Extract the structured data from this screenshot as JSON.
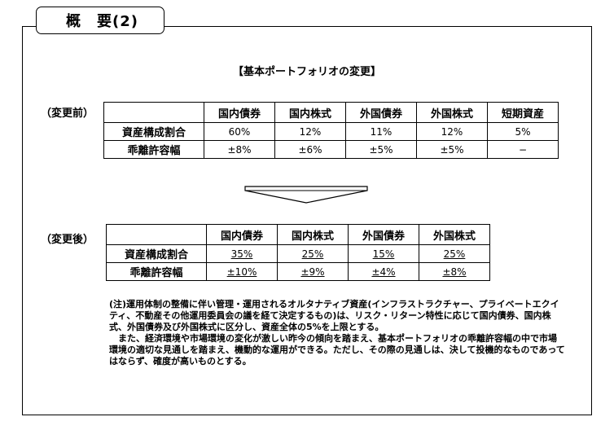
{
  "header": {
    "title": "概　要(2)"
  },
  "section_title": "【基本ポートフォリオの変更】",
  "before": {
    "label": "（変更前）",
    "columns": [
      "国内債券",
      "国内株式",
      "外国債券",
      "外国株式",
      "短期資産"
    ],
    "rows": [
      {
        "label": "資産構成割合",
        "values": [
          "60%",
          "12%",
          "11%",
          "12%",
          "5%"
        ]
      },
      {
        "label": "乖離許容幅",
        "values": [
          "±8%",
          "±6%",
          "±5%",
          "±5%",
          "−"
        ]
      }
    ]
  },
  "after": {
    "label": "（変更後）",
    "columns": [
      "国内債券",
      "国内株式",
      "外国債券",
      "外国株式"
    ],
    "rows": [
      {
        "label": "資産構成割合",
        "values": [
          "35%",
          "25%",
          "15%",
          "25%"
        ]
      },
      {
        "label": "乖離許容幅",
        "values": [
          "±10%",
          "±9%",
          "±4%",
          "±8%"
        ]
      }
    ]
  },
  "note": {
    "paragraph1": "(注)運用体制の整備に伴い管理・運用されるオルタナティブ資産(インフラストラクチャー、プライベートエクイティ、不動産その他運用委員会の議を経て決定するもの)は、リスク・リターン特性に応じて国内債券、国内株式、外国債券及び外国株式に区分し、資産全体の5%を上限とする。",
    "paragraph2": "また、経済環境や市場環境の変化が激しい昨今の傾向を踏まえ、基本ポートフォリオの乖離許容幅の中で市場環境の適切な見通しを踏まえ、機動的な運用ができる。ただし、その際の見通しは、決して投機的なものであってはならず、確度が高いものとする。"
  }
}
